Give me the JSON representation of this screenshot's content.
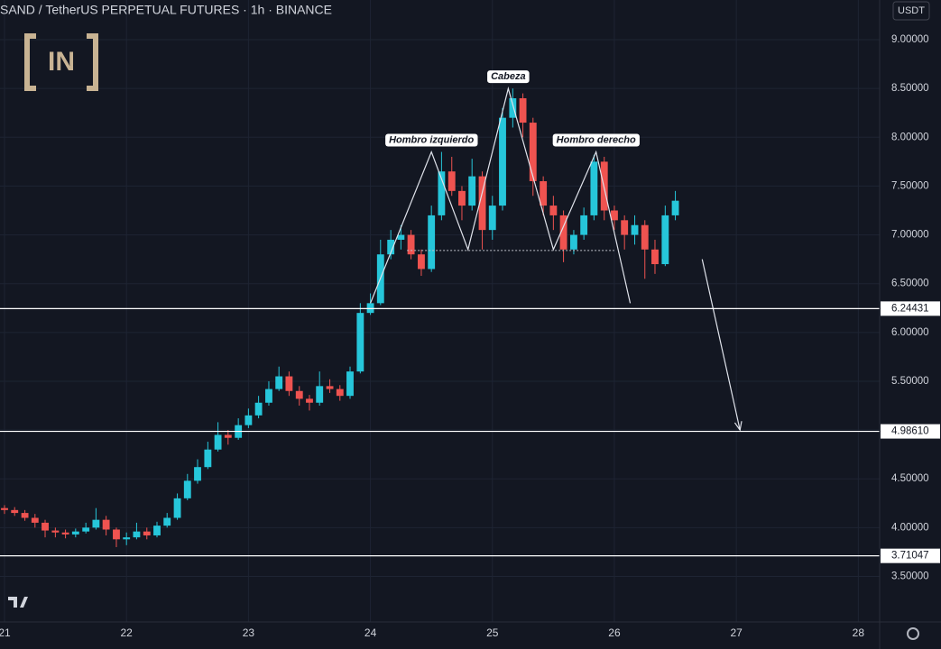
{
  "chart_data": {
    "type": "candlestick",
    "title": "SAND / TetherUS PERPETUAL FUTURES · 1h · BINANCE",
    "watermark": "IN",
    "y_axis_label": "USDT",
    "up_color": "#26c6da",
    "down_color": "#ef5350",
    "grid": true,
    "xlim": [
      20.963,
      28.175
    ],
    "xticks": [
      21,
      22,
      23,
      24,
      25,
      26,
      27,
      28
    ],
    "ylim": [
      3.033,
      9.407
    ],
    "yticks": [
      {
        "value": 3.5,
        "label": "3.50000"
      },
      {
        "value": 4,
        "label": "4.00000"
      },
      {
        "value": 4.5,
        "label": "4.50000"
      },
      {
        "value": 5,
        "label": "5.00000"
      },
      {
        "value": 5.5,
        "label": "5.50000"
      },
      {
        "value": 6,
        "label": "6.00000"
      },
      {
        "value": 6.5,
        "label": "6.50000"
      },
      {
        "value": 7,
        "label": "7.00000"
      },
      {
        "value": 7.5,
        "label": "7.50000"
      },
      {
        "value": 8,
        "label": "8.00000"
      },
      {
        "value": 8.5,
        "label": "8.50000"
      },
      {
        "value": 9,
        "label": "9.00000"
      }
    ],
    "x": [
      21,
      21.083,
      21.167,
      21.25,
      21.333,
      21.417,
      21.5,
      21.583,
      21.667,
      21.75,
      21.833,
      21.917,
      22,
      22.083,
      22.167,
      22.25,
      22.333,
      22.417,
      22.5,
      22.583,
      22.667,
      22.75,
      22.833,
      22.917,
      23,
      23.083,
      23.167,
      23.25,
      23.333,
      23.417,
      23.5,
      23.583,
      23.667,
      23.75,
      23.833,
      23.917,
      24,
      24.083,
      24.167,
      24.25,
      24.333,
      24.417,
      24.5,
      24.583,
      24.667,
      24.75,
      24.833,
      24.917,
      25,
      25.083,
      25.167,
      25.25,
      25.333,
      25.417,
      25.5,
      25.583,
      25.667,
      25.75,
      25.833,
      25.917,
      26,
      26.083,
      26.167,
      26.25,
      26.333,
      26.417,
      26.5
    ],
    "open": [
      4.2,
      4.18,
      4.15,
      4.1,
      4.05,
      3.97,
      3.95,
      3.93,
      3.96,
      4.0,
      4.08,
      3.98,
      3.88,
      3.9,
      3.96,
      3.92,
      4.02,
      4.1,
      4.3,
      4.48,
      4.62,
      4.8,
      4.95,
      4.92,
      5.05,
      5.15,
      5.28,
      5.42,
      5.55,
      5.4,
      5.32,
      5.28,
      5.45,
      5.42,
      5.35,
      5.6,
      6.2,
      6.3,
      6.8,
      6.95,
      7.0,
      6.8,
      6.65,
      7.2,
      7.65,
      7.45,
      7.3,
      7.6,
      7.05,
      7.3,
      8.2,
      8.4,
      8.15,
      7.55,
      7.3,
      7.2,
      6.85,
      7.0,
      7.2,
      7.75,
      7.25,
      7.15,
      7.0,
      7.1,
      6.85,
      6.7,
      7.2
    ],
    "high": [
      4.23,
      4.21,
      4.18,
      4.14,
      4.08,
      4.0,
      3.98,
      3.99,
      4.05,
      4.2,
      4.12,
      4.0,
      3.95,
      4.05,
      4.0,
      4.06,
      4.15,
      4.35,
      4.55,
      4.7,
      4.88,
      5.08,
      5.0,
      5.12,
      5.22,
      5.35,
      5.5,
      5.65,
      5.6,
      5.45,
      5.36,
      5.6,
      5.52,
      5.46,
      5.65,
      6.3,
      6.4,
      6.95,
      7.05,
      7.1,
      7.05,
      6.85,
      7.3,
      7.85,
      7.8,
      7.5,
      7.78,
      7.65,
      7.4,
      8.3,
      8.5,
      8.45,
      8.2,
      7.6,
      7.4,
      7.25,
      7.05,
      7.28,
      7.82,
      7.8,
      7.3,
      7.2,
      7.2,
      7.15,
      6.95,
      7.3,
      7.45
    ],
    "low": [
      4.14,
      4.12,
      4.07,
      4.0,
      3.9,
      3.9,
      3.89,
      3.9,
      3.94,
      3.98,
      3.92,
      3.8,
      3.82,
      3.88,
      3.88,
      3.9,
      4.0,
      4.08,
      4.28,
      4.45,
      4.6,
      4.78,
      4.85,
      4.9,
      5.02,
      5.12,
      5.25,
      5.4,
      5.35,
      5.25,
      5.2,
      5.25,
      5.38,
      5.3,
      5.32,
      5.58,
      6.18,
      6.28,
      6.75,
      6.85,
      6.75,
      6.58,
      6.62,
      7.15,
      7.4,
      7.15,
      7.25,
      6.85,
      6.95,
      7.25,
      8.1,
      8.0,
      7.4,
      7.2,
      7.05,
      6.72,
      6.8,
      6.95,
      7.15,
      7.15,
      7.05,
      6.85,
      6.9,
      6.55,
      6.6,
      6.68,
      7.15
    ],
    "close": [
      4.18,
      4.15,
      4.1,
      4.05,
      3.97,
      3.95,
      3.93,
      3.96,
      4.0,
      4.08,
      3.98,
      3.88,
      3.9,
      3.96,
      3.92,
      4.02,
      4.1,
      4.3,
      4.48,
      4.62,
      4.8,
      4.95,
      4.92,
      5.05,
      5.15,
      5.28,
      5.42,
      5.55,
      5.4,
      5.32,
      5.28,
      5.45,
      5.42,
      5.35,
      5.6,
      6.2,
      6.3,
      6.8,
      6.95,
      7.0,
      6.8,
      6.65,
      7.2,
      7.65,
      7.45,
      7.3,
      7.6,
      7.05,
      7.3,
      8.2,
      8.4,
      8.15,
      7.55,
      7.3,
      7.2,
      6.85,
      7.0,
      7.2,
      7.75,
      7.25,
      7.15,
      7.0,
      7.1,
      6.85,
      6.7,
      7.2,
      7.35
    ],
    "levels": [
      6.24431,
      {
        "value": 4.9861,
        "label": "4.98610"
      },
      3.71047
    ],
    "pattern": {
      "x": [
        24.0,
        24.5,
        24.8,
        25.13,
        25.5,
        25.85,
        26.13
      ],
      "y": [
        6.3,
        7.85,
        6.85,
        8.5,
        6.85,
        7.85,
        6.3
      ],
      "labels": [
        "Hombro izquierdo",
        "Cabeza",
        "Hombro derecho"
      ]
    },
    "neckline": {
      "x": [
        24.3,
        26.0
      ],
      "y": [
        6.84,
        6.84
      ]
    },
    "arrow": {
      "x": [
        26.72,
        27.03
      ],
      "y": [
        6.75,
        5.0
      ]
    }
  }
}
